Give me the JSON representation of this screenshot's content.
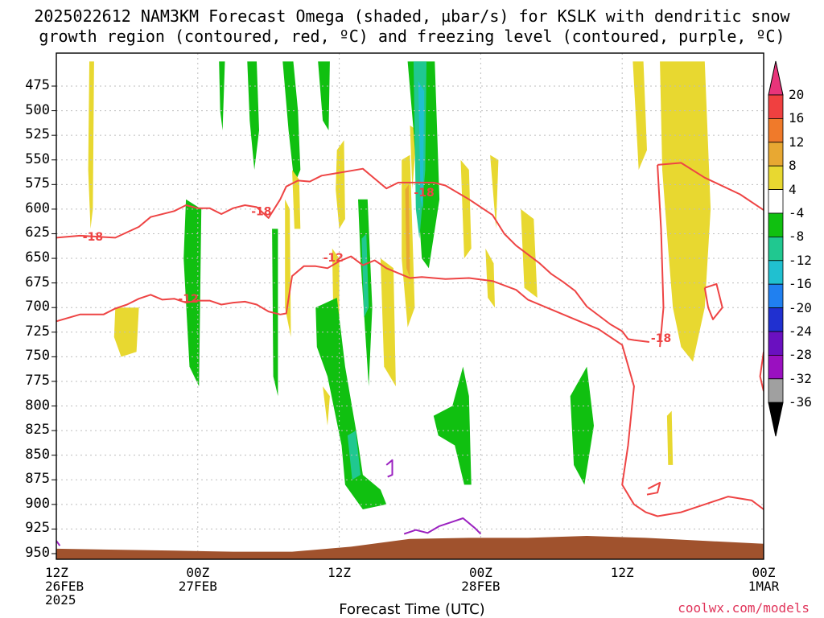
{
  "title": {
    "line1": "2025022612 NAM3KM Forecast Omega (shaded, µbar/s) for KSLK with dendritic snow",
    "line2": "growth region (contoured, red, ºC) and freezing level (contoured, purple, ºC)"
  },
  "xlabel": "Forecast Time (UTC)",
  "credit": "coolwx.com/models",
  "colors": {
    "grid": "#bdbdbd",
    "dgz": "#ee4444",
    "freezing": "#9b22c0",
    "terrain": "#a0522d",
    "frame": "#000000"
  },
  "chart_data": {
    "type": "heatmap",
    "x_ticks": [
      {
        "lines": [
          "12Z",
          "26FEB",
          "2025"
        ],
        "hour": 0
      },
      {
        "lines": [
          "00Z",
          "27FEB"
        ],
        "hour": 12
      },
      {
        "lines": [
          "12Z"
        ],
        "hour": 24
      },
      {
        "lines": [
          "00Z",
          "28FEB"
        ],
        "hour": 36
      },
      {
        "lines": [
          "12Z"
        ],
        "hour": 48
      },
      {
        "lines": [
          "00Z",
          "1MAR"
        ],
        "hour": 60
      }
    ],
    "xlim_hours": [
      0,
      60
    ],
    "y_ticks": [
      475,
      500,
      525,
      550,
      575,
      600,
      625,
      650,
      675,
      700,
      725,
      750,
      775,
      800,
      825,
      850,
      875,
      900,
      925,
      950
    ],
    "ylabel": "",
    "ylim_hpa": [
      450,
      960
    ],
    "colorbar": {
      "levels": [
        20,
        16,
        12,
        8,
        4,
        -4,
        -8,
        -12,
        -16,
        -20,
        -24,
        -28,
        -32,
        -36
      ],
      "colors": [
        "#e8347a",
        "#f04040",
        "#f07a2a",
        "#e8a832",
        "#e8d830",
        "#ffffff",
        "#10c010",
        "#20c890",
        "#20c0d0",
        "#2080f0",
        "#2030d0",
        "#6a10c0",
        "#9a10c0",
        "#a0a0a0",
        "#000000"
      ]
    },
    "contour_labels": [
      {
        "text": "-18",
        "hour": 3.1,
        "hpa": 628
      },
      {
        "text": "-18",
        "hour": 17.4,
        "hpa": 602
      },
      {
        "text": "-18",
        "hour": 31.2,
        "hpa": 583
      },
      {
        "text": "-18",
        "hour": 51.3,
        "hpa": 731
      },
      {
        "text": "-12",
        "hour": 11.2,
        "hpa": 691
      },
      {
        "text": "-12",
        "hour": 23.5,
        "hpa": 649
      }
    ],
    "dgz_warm_boundary_upper": [
      [
        0,
        629
      ],
      [
        2,
        627
      ],
      [
        5,
        629
      ],
      [
        7,
        618
      ],
      [
        8,
        608
      ],
      [
        10,
        602
      ],
      [
        11,
        596
      ],
      [
        12,
        599
      ],
      [
        13,
        599
      ],
      [
        14,
        605
      ],
      [
        15,
        599
      ],
      [
        16,
        596
      ],
      [
        17,
        598
      ],
      [
        18,
        609
      ],
      [
        19,
        590
      ],
      [
        19.5,
        577
      ],
      [
        20.5,
        571
      ],
      [
        21.5,
        572
      ],
      [
        22.5,
        566
      ],
      [
        23.5,
        564
      ],
      [
        25,
        561
      ],
      [
        26,
        559
      ],
      [
        27,
        569
      ],
      [
        28,
        579
      ],
      [
        29,
        573
      ],
      [
        30,
        573
      ],
      [
        31,
        573
      ],
      [
        32,
        573
      ],
      [
        33,
        576
      ],
      [
        35,
        590
      ],
      [
        37,
        606
      ],
      [
        38,
        625
      ],
      [
        39,
        637
      ],
      [
        40,
        646
      ],
      [
        41,
        655
      ],
      [
        42,
        666
      ],
      [
        43,
        674
      ],
      [
        44,
        683
      ],
      [
        45,
        699
      ],
      [
        47,
        717
      ],
      [
        48,
        724
      ],
      [
        48.5,
        732
      ],
      [
        49,
        733
      ],
      [
        50.3,
        735
      ]
    ],
    "dgz_cold_boundary_upper": [
      [
        0,
        714
      ],
      [
        2,
        707
      ],
      [
        4,
        707
      ],
      [
        5,
        701
      ],
      [
        6,
        697
      ],
      [
        7,
        691
      ],
      [
        8,
        687
      ],
      [
        9,
        692
      ],
      [
        10,
        691
      ],
      [
        11,
        695
      ],
      [
        12,
        693
      ],
      [
        13,
        693
      ],
      [
        14,
        697
      ],
      [
        15,
        695
      ],
      [
        16,
        694
      ],
      [
        17,
        697
      ],
      [
        18,
        704
      ],
      [
        19,
        707
      ],
      [
        19.5,
        706
      ],
      [
        20,
        668
      ],
      [
        21,
        658
      ],
      [
        22,
        658
      ],
      [
        23,
        660
      ],
      [
        24,
        653
      ],
      [
        25,
        648
      ],
      [
        26,
        657
      ],
      [
        27,
        652
      ],
      [
        28,
        660
      ],
      [
        29,
        665
      ],
      [
        30,
        670
      ],
      [
        31,
        669
      ],
      [
        33,
        671
      ],
      [
        35,
        670
      ],
      [
        37,
        673
      ],
      [
        39,
        682
      ],
      [
        40,
        692
      ],
      [
        42,
        702
      ],
      [
        44,
        712
      ],
      [
        46,
        722
      ],
      [
        48,
        738
      ],
      [
        49,
        780
      ],
      [
        48.5,
        840
      ],
      [
        48,
        880
      ],
      [
        49,
        900
      ],
      [
        50,
        908
      ],
      [
        51,
        912
      ],
      [
        53,
        908
      ],
      [
        55,
        900
      ],
      [
        57,
        892
      ],
      [
        59,
        896
      ],
      [
        60,
        905
      ]
    ],
    "freezing_level_contour": [
      [
        29.5,
        930
      ],
      [
        30.5,
        926
      ],
      [
        31.5,
        929
      ],
      [
        32.5,
        922
      ],
      [
        33.5,
        918
      ],
      [
        34.5,
        914
      ],
      [
        35.5,
        924
      ],
      [
        36,
        930
      ]
    ],
    "terrain_top_hpa": [
      [
        0,
        945
      ],
      [
        5,
        946
      ],
      [
        10,
        947
      ],
      [
        15,
        948
      ],
      [
        20,
        948
      ],
      [
        25,
        943
      ],
      [
        30,
        935
      ],
      [
        35,
        934
      ],
      [
        40,
        934
      ],
      [
        45,
        932
      ],
      [
        50,
        934
      ],
      [
        55,
        937
      ],
      [
        60,
        940
      ]
    ]
  }
}
